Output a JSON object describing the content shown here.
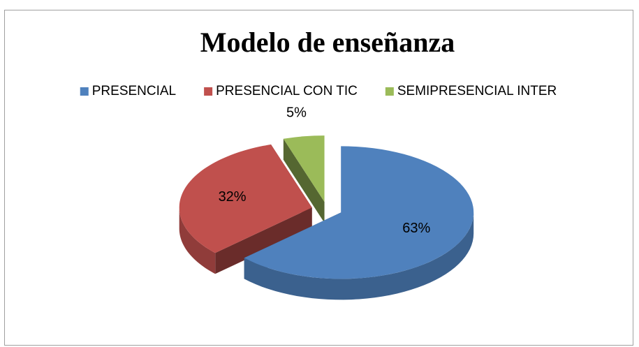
{
  "chart_data": {
    "type": "pie",
    "title": "Modelo de enseñanza",
    "categories": [
      "PRESENCIAL",
      "PRESENCIAL CON TIC",
      "SEMIPRESENCIAL INTER"
    ],
    "values": [
      63,
      32,
      5
    ],
    "value_labels": [
      "63%",
      "32%",
      "5%"
    ],
    "colors": [
      "#4f81bd",
      "#c0504d",
      "#9bbb59"
    ],
    "legend": "top"
  }
}
